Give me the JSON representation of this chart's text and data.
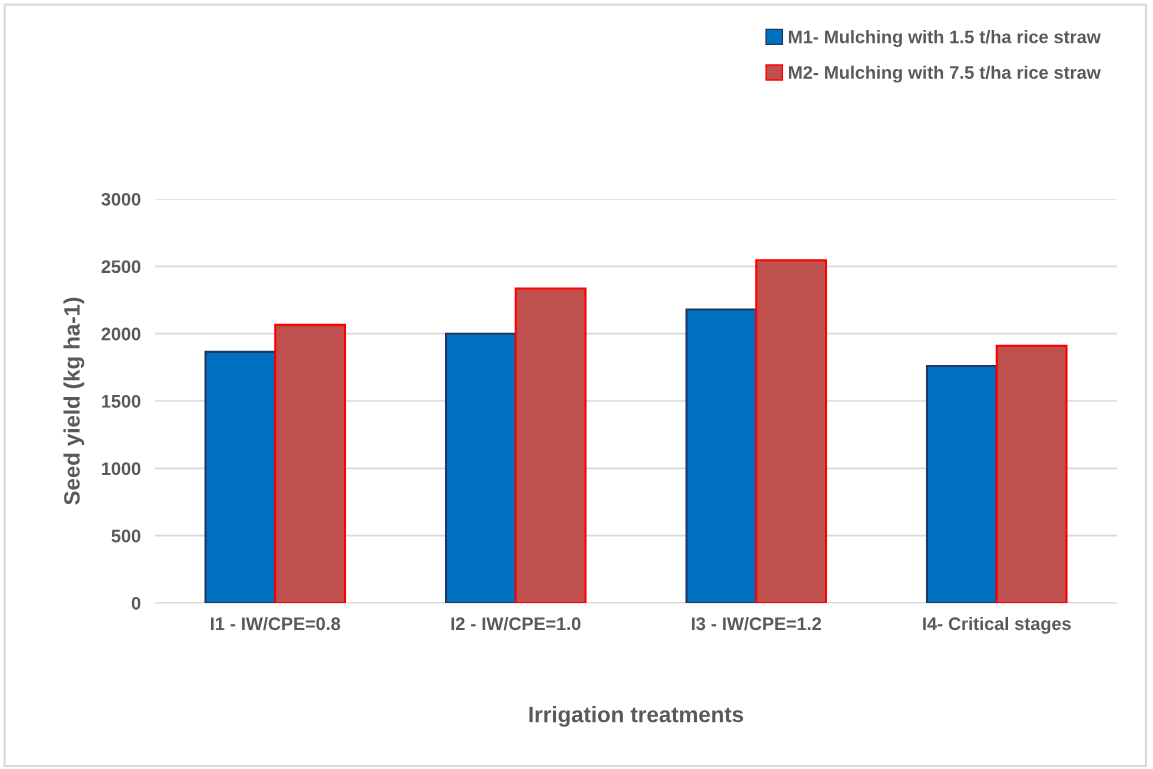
{
  "chart_data": {
    "type": "bar",
    "xlabel": "Irrigation treatments",
    "ylabel": "Seed yield (kg ha-1)",
    "categories": [
      "I1 - IW/CPE=0.8",
      "I2 - IW/CPE=1.0",
      "I3 - IW/CPE=1.2",
      "I4- Critical stages"
    ],
    "series": [
      {
        "name": "M1- Mulching with 1.5 t/ha rice straw",
        "color": "#0070c0",
        "values": [
          1865,
          2000,
          2180,
          1760
        ]
      },
      {
        "name": "M2- Mulching with 7.5 t/ha rice straw",
        "color": "#c0504d",
        "values": [
          2065,
          2335,
          2545,
          1910
        ]
      }
    ],
    "ylim": [
      0,
      3000
    ],
    "yticks": [
      0,
      500,
      1000,
      1500,
      2000,
      2500,
      3000
    ],
    "grid": "y",
    "legend": "top right"
  }
}
